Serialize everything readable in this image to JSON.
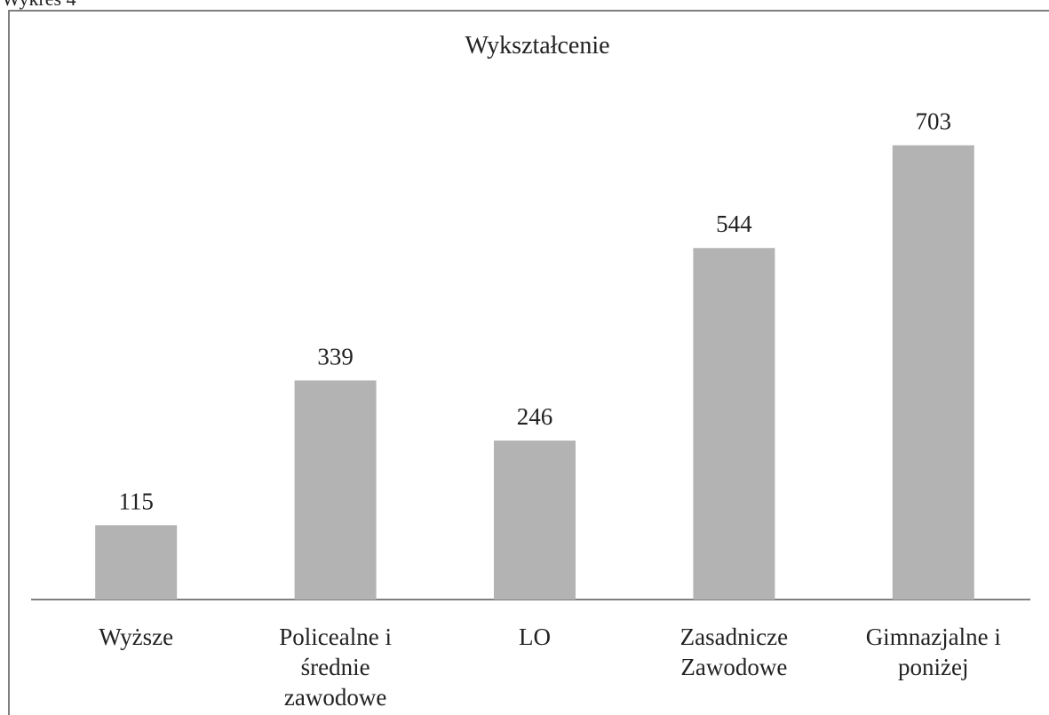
{
  "chart_data": {
    "type": "bar",
    "label": "Wykres 4",
    "title": "Wykształcenie",
    "categories": [
      "Wyższe",
      "Policealne i średnie zawodowe",
      "LO",
      "Zasadnicze Zawodowe",
      "Gimnazjalne i poniżej"
    ],
    "values": [
      115,
      339,
      246,
      544,
      703
    ],
    "color": "#b3b3b3",
    "ylim": [
      0,
      800
    ]
  }
}
